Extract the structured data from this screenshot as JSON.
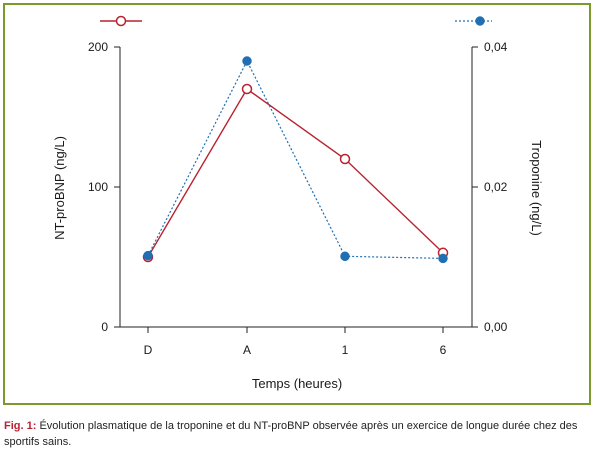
{
  "chart_data": {
    "type": "line",
    "x_categories": [
      "D",
      "A",
      "1",
      "6"
    ],
    "xlabel": "Temps (heures)",
    "y_left": {
      "label": "NT-proBNP (ng/L)",
      "ylim": [
        0,
        200
      ],
      "ticks": [
        "0",
        "100",
        "200"
      ],
      "tick_values": [
        0,
        100,
        200
      ]
    },
    "y_right": {
      "label": "Troponine (ng/L)",
      "ylim": [
        0,
        0.04
      ],
      "ticks": [
        "0,00",
        "0,02",
        "0,04"
      ],
      "tick_values": [
        0,
        0.02,
        0.04
      ]
    },
    "grid": false,
    "legend_placement": "top",
    "series": [
      {
        "key": "ntprobnp",
        "axis": "left",
        "values": [
          50,
          170,
          120,
          53
        ],
        "color": "#b8232f",
        "style": "solid",
        "marker": "open-circle"
      },
      {
        "key": "troponine",
        "axis": "right",
        "values": [
          0.0102,
          0.038,
          0.0101,
          0.0098
        ],
        "color": "#1f6fb2",
        "style": "dotted",
        "marker": "filled-circle"
      }
    ]
  },
  "caption": {
    "label": "Fig. 1:",
    "text": " Évolution plasmatique de la troponine et du NT-proBNP observée après un exercice de longue durée chez des sportifs sains."
  }
}
